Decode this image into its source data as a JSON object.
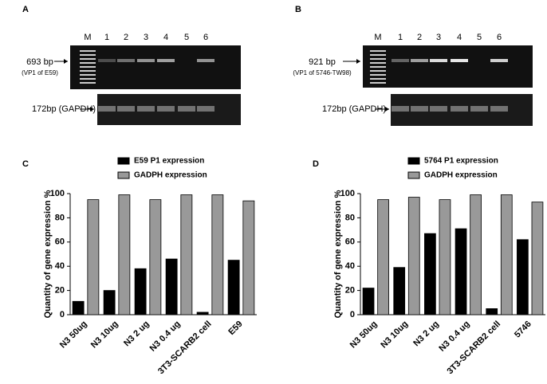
{
  "gels": [
    {
      "panel_label": "A",
      "lanes": [
        "M",
        "1",
        "2",
        "3",
        "4",
        "5",
        "6"
      ],
      "top_label": "693 bp",
      "top_sublabel": "(VP1 of E59)",
      "bottom_label": "172bp (GAPDH)"
    },
    {
      "panel_label": "B",
      "lanes": [
        "M",
        "1",
        "2",
        "3",
        "4",
        "5",
        "6"
      ],
      "top_label": "921 bp",
      "top_sublabel": "(VP1 of 5746-TW98)",
      "bottom_label": "172bp (GAPDH)"
    }
  ],
  "chart_data": [
    {
      "type": "bar",
      "panel_label": "C",
      "y_label": "Quantity of gene expression %",
      "categories": [
        "N3 50ug",
        "N3 10ug",
        "N3 2 ug",
        "N3 0.4 ug",
        "3T3-SCARB2 cell",
        "E59"
      ],
      "series": [
        {
          "name": "E59 P1 expression",
          "color": "#000000",
          "values": [
            11,
            20,
            38,
            46,
            2,
            45
          ]
        },
        {
          "name": "GADPH expression",
          "color": "#999999",
          "values": [
            95,
            99,
            95,
            99,
            99,
            94
          ]
        }
      ],
      "ylim": [
        0,
        100
      ],
      "yticks": [
        0,
        20,
        40,
        60,
        80,
        100
      ]
    },
    {
      "type": "bar",
      "panel_label": "D",
      "y_label": "Quantity of gene expression %",
      "categories": [
        "N3 50ug",
        "N3 10ug",
        "N3 2 ug",
        "N3 0.4 ug",
        "3T3-SCARB2 cell",
        "5746"
      ],
      "series": [
        {
          "name": "5764 P1 expression",
          "color": "#000000",
          "values": [
            22,
            39,
            67,
            71,
            5,
            62
          ]
        },
        {
          "name": "GADPH expression",
          "color": "#999999",
          "values": [
            95,
            97,
            95,
            99,
            99,
            93
          ]
        }
      ],
      "ylim": [
        0,
        100
      ],
      "yticks": [
        0,
        20,
        40,
        60,
        80,
        100
      ]
    }
  ]
}
